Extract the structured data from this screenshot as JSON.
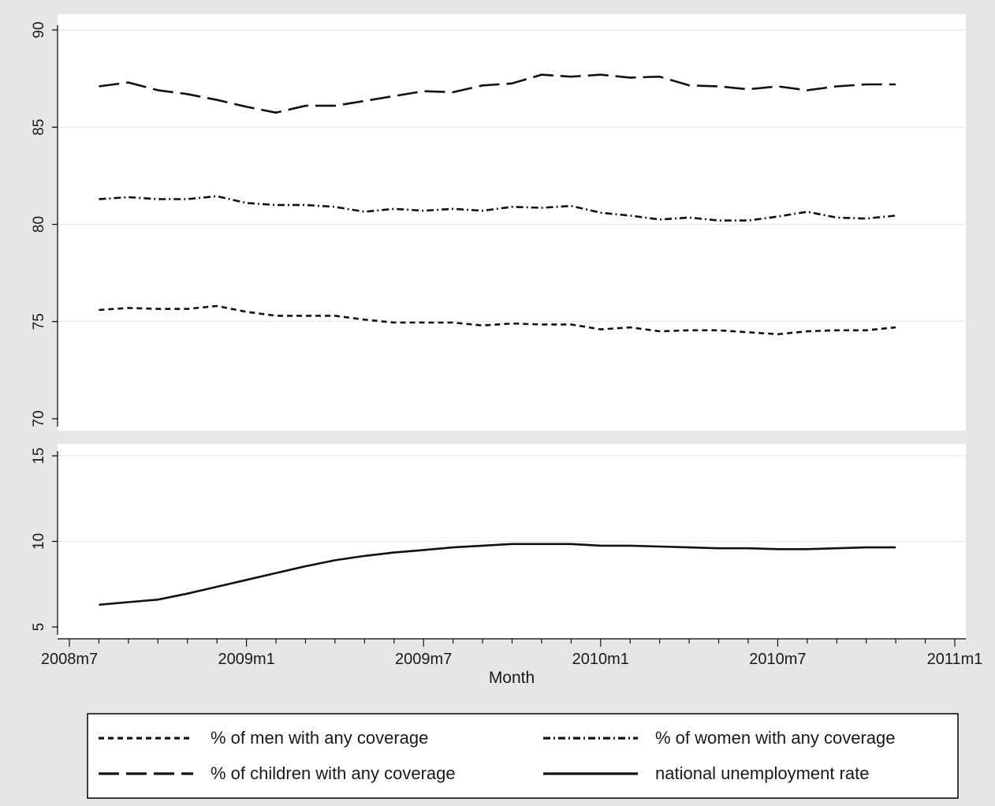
{
  "chart_data": {
    "type": "line",
    "xlabel": "Month",
    "x_ticks": [
      "2008m7",
      "2009m1",
      "2009m7",
      "2010m1",
      "2010m7",
      "2011m1"
    ],
    "x": [
      "2008m8",
      "2008m9",
      "2008m10",
      "2008m11",
      "2008m12",
      "2009m1",
      "2009m2",
      "2009m3",
      "2009m4",
      "2009m5",
      "2009m6",
      "2009m7",
      "2009m8",
      "2009m9",
      "2009m10",
      "2009m11",
      "2009m12",
      "2010m1",
      "2010m2",
      "2010m3",
      "2010m4",
      "2010m5",
      "2010m6",
      "2010m7",
      "2010m8",
      "2010m9",
      "2010m10",
      "2010m11"
    ],
    "legend_position": "bottom",
    "panels": [
      {
        "ylim": [
          70,
          90
        ],
        "yticks": [
          70,
          75,
          80,
          85,
          90
        ],
        "series": [
          {
            "name": "% of men with any coverage",
            "style": "dash",
            "values": [
              75.6,
              75.7,
              75.65,
              75.65,
              75.8,
              75.5,
              75.3,
              75.3,
              75.3,
              75.1,
              74.95,
              74.95,
              74.95,
              74.8,
              74.9,
              74.85,
              74.85,
              74.6,
              74.7,
              74.5,
              74.55,
              74.55,
              74.45,
              74.35,
              74.5,
              74.55,
              74.55,
              74.7
            ]
          },
          {
            "name": "% of women with any coverage",
            "style": "dashdot",
            "values": [
              81.3,
              81.4,
              81.3,
              81.3,
              81.45,
              81.1,
              81.0,
              81.0,
              80.9,
              80.65,
              80.8,
              80.7,
              80.8,
              80.7,
              80.9,
              80.85,
              80.95,
              80.6,
              80.45,
              80.25,
              80.35,
              80.2,
              80.2,
              80.4,
              80.65,
              80.35,
              80.3,
              80.45
            ]
          },
          {
            "name": "% of children with any coverage",
            "style": "longdash",
            "values": [
              87.1,
              87.3,
              86.9,
              86.7,
              86.4,
              86.05,
              85.75,
              86.1,
              86.1,
              86.35,
              86.6,
              86.85,
              86.8,
              87.15,
              87.25,
              87.7,
              87.6,
              87.7,
              87.55,
              87.6,
              87.15,
              87.1,
              86.95,
              87.1,
              86.9,
              87.1,
              87.2,
              87.2
            ]
          }
        ]
      },
      {
        "ylim": [
          5,
          15
        ],
        "yticks": [
          5,
          10,
          15
        ],
        "series": [
          {
            "name": "national unemployment rate",
            "style": "solid",
            "values": [
              6.3,
              6.45,
              6.6,
              6.95,
              7.35,
              7.75,
              8.15,
              8.55,
              8.9,
              9.15,
              9.35,
              9.5,
              9.65,
              9.75,
              9.85,
              9.85,
              9.85,
              9.75,
              9.75,
              9.7,
              9.65,
              9.6,
              9.6,
              9.55,
              9.55,
              9.6,
              9.65,
              9.65
            ]
          }
        ]
      }
    ]
  }
}
